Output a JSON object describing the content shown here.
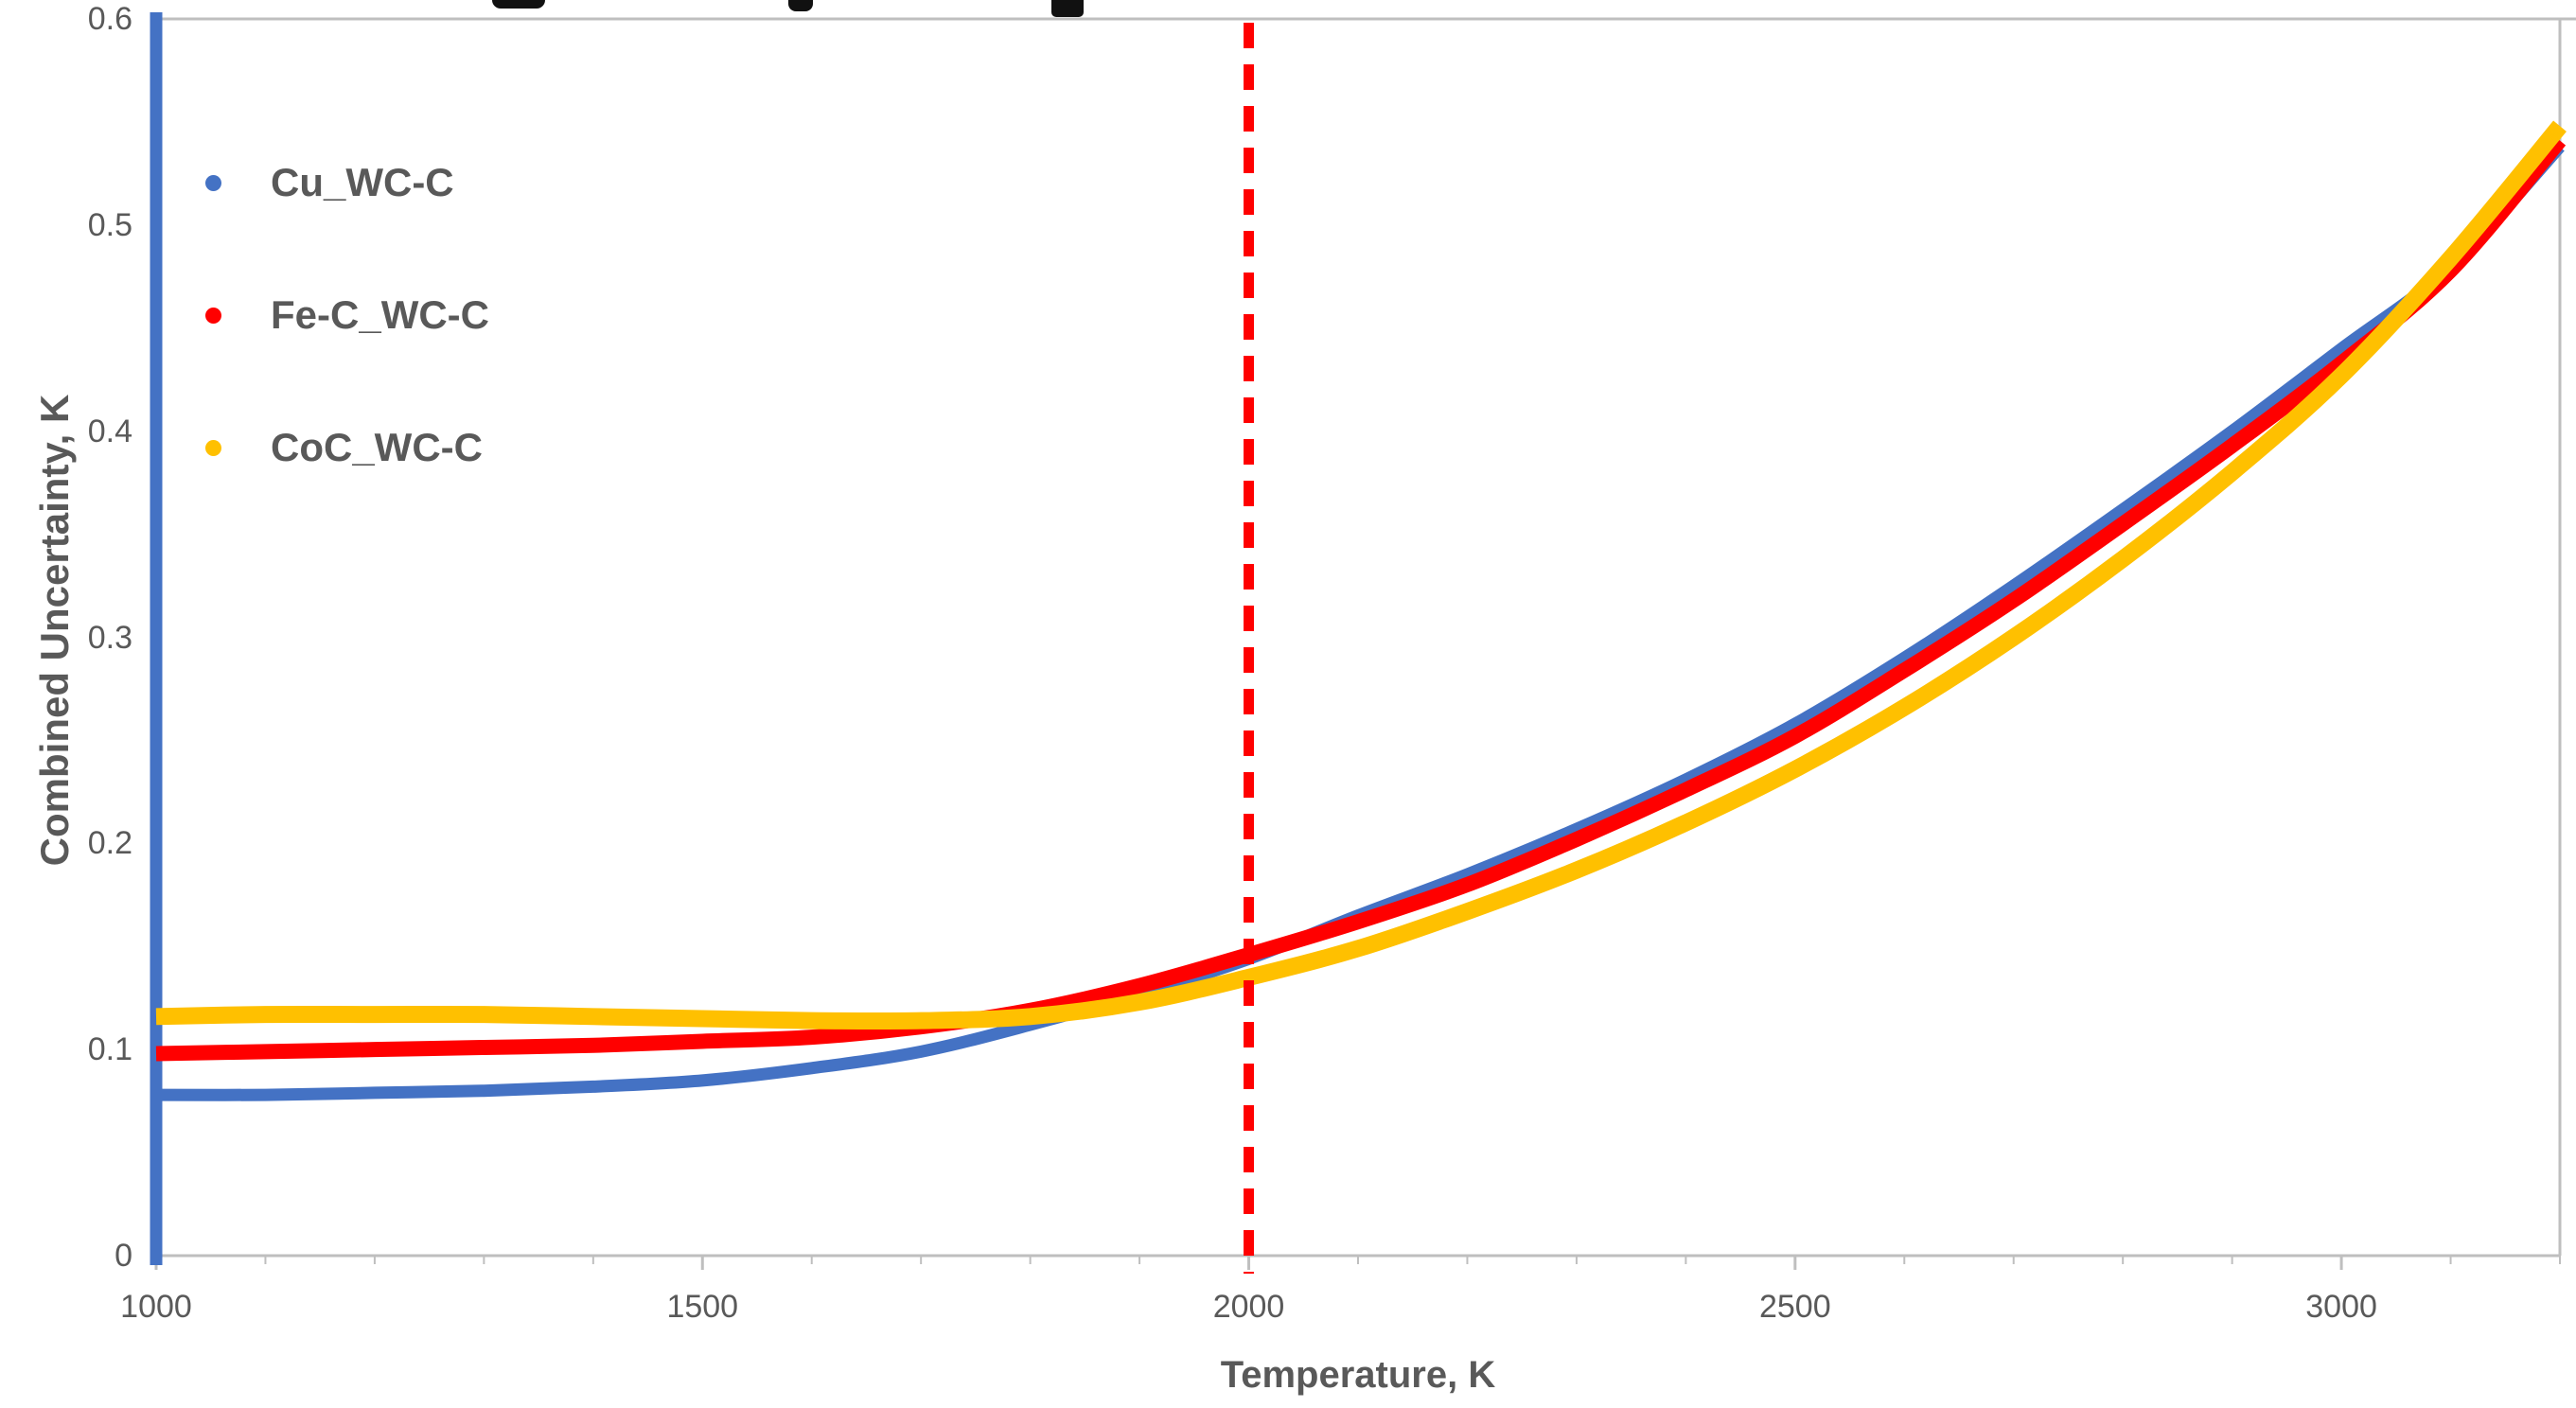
{
  "figure": {
    "background": "#FFFFFF",
    "title_cropped_out_of_frame": true
  },
  "chart_data": {
    "type": "line",
    "title": "",
    "xlabel": "Temperature, K",
    "ylabel": "Combined Uncertainty, K",
    "xlim": [
      1000,
      3200
    ],
    "ylim": [
      0,
      0.6
    ],
    "x_major_ticks": [
      1000,
      1500,
      2000,
      2500,
      3000
    ],
    "x_minor_tick_step": 100,
    "y_ticks": [
      0,
      0.1,
      0.2,
      0.3,
      0.4,
      0.5,
      0.6
    ],
    "y_tick_labels": [
      "0",
      "0.1",
      "0.2",
      "0.3",
      "0.4",
      "0.5",
      "0.6"
    ],
    "grid": false,
    "legend_position": "inside-top-left",
    "annotations": [
      {
        "type": "vline",
        "x": 2000,
        "color": "#FF0000",
        "style": "dashed"
      }
    ],
    "x": [
      1000,
      1100,
      1200,
      1300,
      1400,
      1500,
      1600,
      1700,
      1800,
      1900,
      2000,
      2100,
      2200,
      2300,
      2400,
      2500,
      2600,
      2700,
      2800,
      2900,
      3000,
      3100,
      3200
    ],
    "series": [
      {
        "name": "Cu_WC-C",
        "color": "#4472C4",
        "vertical_spike_at_x": 1000,
        "values": [
          0.078,
          0.078,
          0.079,
          0.08,
          0.082,
          0.085,
          0.091,
          0.099,
          0.112,
          0.127,
          0.144,
          0.165,
          0.185,
          0.207,
          0.231,
          0.258,
          0.29,
          0.325,
          0.362,
          0.4,
          0.44,
          0.48,
          0.538
        ]
      },
      {
        "name": "Fe-C_WC-C",
        "color": "#FF0000",
        "values": [
          0.098,
          0.099,
          0.1,
          0.101,
          0.102,
          0.104,
          0.106,
          0.111,
          0.119,
          0.131,
          0.146,
          0.162,
          0.18,
          0.202,
          0.226,
          0.252,
          0.284,
          0.318,
          0.355,
          0.393,
          0.433,
          0.478,
          0.541
        ]
      },
      {
        "name": "CoC_WC-C",
        "color": "#FFC000",
        "values": [
          0.116,
          0.117,
          0.117,
          0.117,
          0.116,
          0.115,
          0.114,
          0.114,
          0.116,
          0.123,
          0.135,
          0.149,
          0.167,
          0.187,
          0.21,
          0.236,
          0.266,
          0.3,
          0.338,
          0.38,
          0.427,
          0.484,
          0.548
        ]
      }
    ]
  },
  "axes": {
    "x_title": "Temperature, K",
    "y_title": "Combined Uncertainty, K"
  },
  "legend": {
    "items": [
      {
        "label": "Cu_WC-C",
        "color": "#4472C4"
      },
      {
        "label": "Fe-C_WC-C",
        "color": "#FF0000"
      },
      {
        "label": "CoC_WC-C",
        "color": "#FFC000"
      }
    ]
  },
  "colors": {
    "axis_line": "#BFBFBF",
    "tick_label": "#595959",
    "axis_title": "#595959",
    "legend_text": "#595959",
    "reference_line": "#FF0000",
    "background": "#FFFFFF"
  }
}
